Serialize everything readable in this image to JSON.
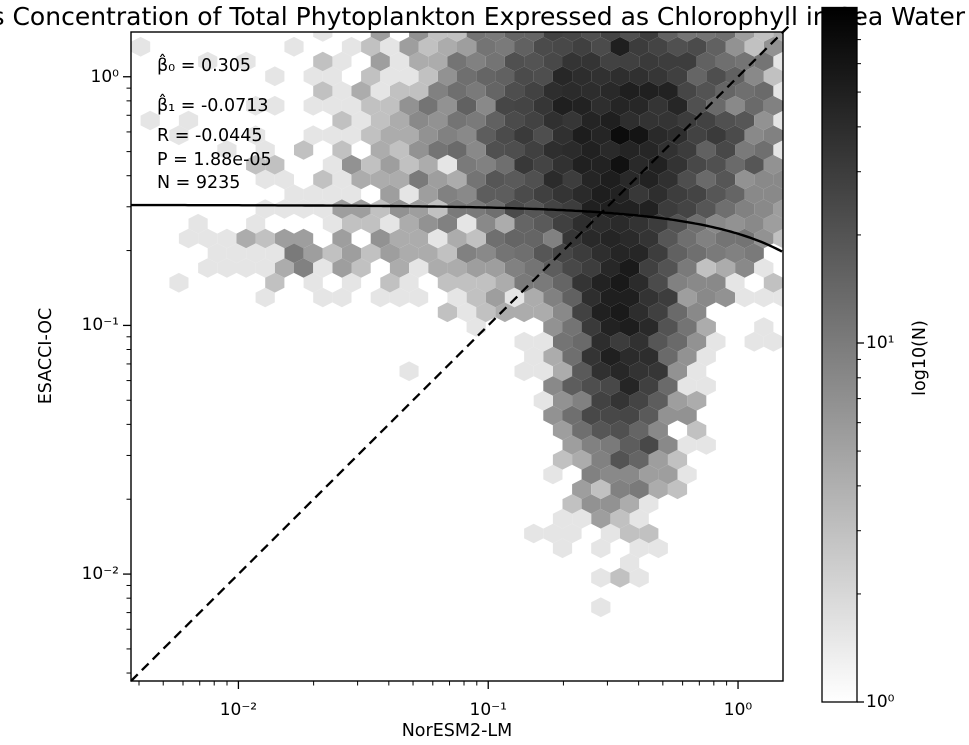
{
  "chart_data": {
    "type": "hexbin",
    "title": "s Concentration of Total Phytoplankton Expressed as Chlorophyll in Sea Water",
    "xlabel": "NorESM2-LM",
    "ylabel": "ESACCI-OC",
    "xscale": "log",
    "yscale": "log",
    "xlim_log10": [
      -2.43,
      0.18
    ],
    "ylim_log10": [
      -2.43,
      0.18
    ],
    "x_major_ticks": [
      {
        "log10": -2,
        "label": "10⁻²"
      },
      {
        "log10": -1,
        "label": "10⁻¹"
      },
      {
        "log10": 0,
        "label": "10⁰"
      }
    ],
    "y_major_ticks": [
      {
        "log10": 0,
        "label": "10⁰"
      },
      {
        "log10": -1,
        "label": "10⁻¹"
      },
      {
        "log10": -2,
        "label": "10⁻²"
      }
    ],
    "stats": {
      "lines": [
        "β̂₀ = 0.305",
        "β̂₁ = -0.0713",
        "R = -0.0445",
        "P = 1.88e-05",
        "N = 9235"
      ],
      "beta0": 0.305,
      "beta1": -0.0713,
      "R": -0.0445,
      "P": "1.88e-05",
      "N": 9235
    },
    "fit_line": {
      "intercept": 0.305,
      "slope": -0.0713,
      "style": "solid",
      "color": "#000000"
    },
    "identity_line": {
      "style": "dashed",
      "color": "#000000"
    },
    "colorbar": {
      "label": "log10(N)",
      "major_ticks": [
        {
          "n": 1,
          "label": "10⁰"
        },
        {
          "n": 10,
          "label": "10¹"
        }
      ],
      "n_max": 86,
      "cmap": [
        "#ffffff",
        "#000000"
      ]
    },
    "hexbin": {
      "seed": 42,
      "gridsize": [
        34,
        22
      ],
      "total_points": 9235,
      "clusters": [
        {
          "cx": -0.5,
          "cy": -0.2,
          "sx": 0.28,
          "sy": 0.3,
          "n": 4300
        },
        {
          "cx": -0.47,
          "cy": -1.0,
          "sx": 0.12,
          "sy": 0.33,
          "n": 2500
        },
        {
          "cx": -0.6,
          "cy": -0.25,
          "sx": 0.5,
          "sy": 0.42,
          "n": 2195,
          "ymin": -0.95
        },
        {
          "cx": -1.78,
          "cy": -0.7,
          "sx": 0.18,
          "sy": 0.07,
          "n": 60
        },
        {
          "cx": -0.4,
          "cy": -0.35,
          "sx": 0.72,
          "sy": 0.5,
          "n": 180,
          "ymin": -0.92
        }
      ]
    }
  }
}
